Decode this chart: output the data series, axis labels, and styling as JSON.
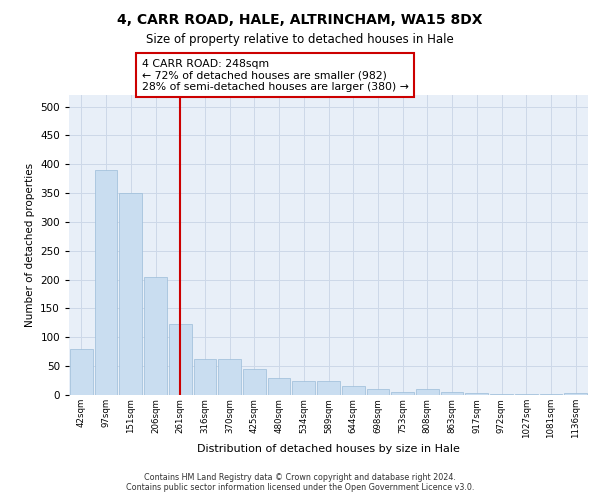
{
  "title1": "4, CARR ROAD, HALE, ALTRINCHAM, WA15 8DX",
  "title2": "Size of property relative to detached houses in Hale",
  "xlabel": "Distribution of detached houses by size in Hale",
  "ylabel": "Number of detached properties",
  "categories": [
    "42sqm",
    "97sqm",
    "151sqm",
    "206sqm",
    "261sqm",
    "316sqm",
    "370sqm",
    "425sqm",
    "480sqm",
    "534sqm",
    "589sqm",
    "644sqm",
    "698sqm",
    "753sqm",
    "808sqm",
    "863sqm",
    "917sqm",
    "972sqm",
    "1027sqm",
    "1081sqm",
    "1136sqm"
  ],
  "values": [
    80,
    390,
    350,
    205,
    123,
    63,
    63,
    45,
    30,
    25,
    25,
    15,
    10,
    5,
    10,
    5,
    3,
    2,
    2,
    2,
    3
  ],
  "bar_color": "#c9ddf0",
  "bar_edge_color": "#9bbcd8",
  "vline_x": 4.0,
  "vline_color": "#cc0000",
  "annotation_line1": "4 CARR ROAD: 248sqm",
  "annotation_line2": "← 72% of detached houses are smaller (982)",
  "annotation_line3": "28% of semi-detached houses are larger (380) →",
  "annotation_box_color": "#cc0000",
  "annotation_bg": "#ffffff",
  "ylim": [
    0,
    520
  ],
  "yticks": [
    0,
    50,
    100,
    150,
    200,
    250,
    300,
    350,
    400,
    450,
    500
  ],
  "grid_color": "#cdd8e8",
  "bg_color": "#e8eff8",
  "footer1": "Contains HM Land Registry data © Crown copyright and database right 2024.",
  "footer2": "Contains public sector information licensed under the Open Government Licence v3.0."
}
